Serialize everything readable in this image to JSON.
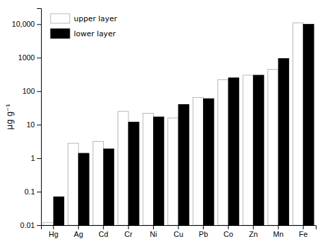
{
  "chart_data": {
    "type": "bar",
    "categories": [
      "Hg",
      "Ag",
      "Cd",
      "Cr",
      "Ni",
      "Cu",
      "Pb",
      "Co",
      "Zn",
      "Mn",
      "Fe"
    ],
    "series": [
      {
        "name": "upper layer",
        "color": "#ffffff",
        "values": [
          0.012,
          2.8,
          3.2,
          25,
          22,
          16,
          65,
          220,
          300,
          450,
          11000
        ]
      },
      {
        "name": "lower layer",
        "color": "#000000",
        "values": [
          0.07,
          1.4,
          1.9,
          12,
          17,
          40,
          60,
          250,
          300,
          950,
          10000
        ]
      }
    ],
    "ylabel": "µg g⁻¹",
    "log": "y",
    "ylim": [
      0.01,
      30000
    ],
    "yticks": [
      0.01,
      0.1,
      1,
      10,
      100,
      1000,
      {
        "value": 10000,
        "label": "10,000"
      }
    ],
    "legend": "upper left"
  }
}
